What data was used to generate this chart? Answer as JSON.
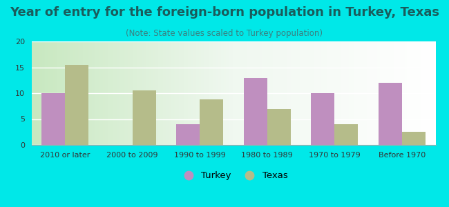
{
  "title": "Year of entry for the foreign-born population in Turkey, Texas",
  "subtitle": "(Note: State values scaled to Turkey population)",
  "categories": [
    "2010 or later",
    "2000 to 2009",
    "1990 to 1999",
    "1980 to 1989",
    "1970 to 1979",
    "Before 1970"
  ],
  "turkey_values": [
    10,
    0,
    4,
    13,
    10,
    12
  ],
  "texas_values": [
    15.5,
    10.5,
    8.8,
    7,
    4,
    2.5
  ],
  "turkey_color": "#bf8fbf",
  "texas_color": "#b5bc8a",
  "background_color": "#00e8e8",
  "ylim": [
    0,
    20
  ],
  "yticks": [
    0,
    5,
    10,
    15,
    20
  ],
  "bar_width": 0.35,
  "legend_turkey": "Turkey",
  "legend_texas": "Texas",
  "title_fontsize": 13,
  "subtitle_fontsize": 8.5,
  "tick_fontsize": 8,
  "title_color": "#1a5c5c",
  "subtitle_color": "#3a8080"
}
